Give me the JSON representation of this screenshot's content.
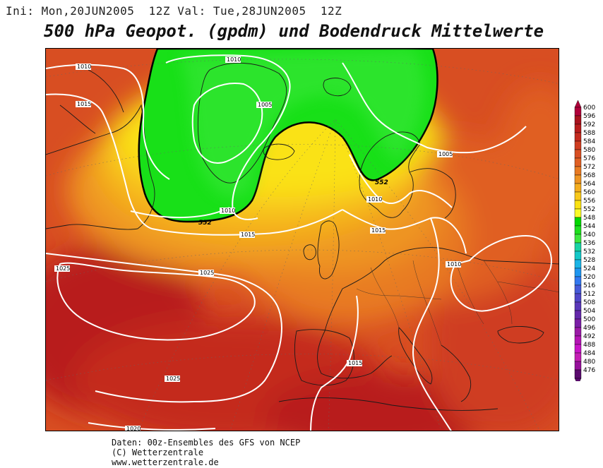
{
  "header": {
    "run_info": "Ini: Mon,20JUN2005  12Z Val: Tue,28JUN2005  12Z",
    "title": "500 hPa Geopot. (gpdm) und Bodendruck Mittelwerte"
  },
  "map": {
    "geopotential_contour_label": "552",
    "isobar_labels": [
      {
        "id": "isobar-1010-atlantic",
        "text": "1010"
      },
      {
        "id": "isobar-1010-greenland",
        "text": "1010"
      },
      {
        "id": "isobar-1005-greenland",
        "text": "1005"
      },
      {
        "id": "isobar-1015-westcoast",
        "text": "1015"
      },
      {
        "id": "isobar-1010-iceland",
        "text": "1010"
      },
      {
        "id": "isobar-1015-uk",
        "text": "1015"
      },
      {
        "id": "isobar-1005-scandinavia",
        "text": "1005"
      },
      {
        "id": "isobar-1010-baltic",
        "text": "1010"
      },
      {
        "id": "isobar-1015-baltic",
        "text": "1015"
      },
      {
        "id": "isobar-1025-west",
        "text": "1025"
      },
      {
        "id": "isobar-1025-center",
        "text": "1025"
      },
      {
        "id": "isobar-1010-balkans",
        "text": "1010"
      },
      {
        "id": "isobar-1015-iberia",
        "text": "1015"
      },
      {
        "id": "isobar-1025-south",
        "text": "1025"
      },
      {
        "id": "isobar-1020-bottom",
        "text": "1020"
      }
    ]
  },
  "colorbar": {
    "levels": [
      "600",
      "596",
      "592",
      "588",
      "584",
      "580",
      "576",
      "572",
      "568",
      "564",
      "560",
      "556",
      "552",
      "548",
      "544",
      "540",
      "536",
      "532",
      "528",
      "524",
      "520",
      "516",
      "512",
      "508",
      "504",
      "500",
      "496",
      "492",
      "488",
      "484",
      "480",
      "476"
    ],
    "colors": [
      "#b0003a",
      "#a8121e",
      "#b81c1c",
      "#c42a1e",
      "#cf3d20",
      "#d84e22",
      "#e05f23",
      "#e87a22",
      "#ee9422",
      "#f4ad1e",
      "#f8c81a",
      "#fae212",
      "#fafa28",
      "#00d800",
      "#1ee01e",
      "#3ee83e",
      "#19d3a4",
      "#14c8c8",
      "#1ab4e6",
      "#1e96f0",
      "#3278f0",
      "#465ad8",
      "#5046c8",
      "#5a37b9",
      "#6428aa",
      "#7a1ea6",
      "#9a1aa6",
      "#b414b4",
      "#c814c8",
      "#c41eb4",
      "#96109a",
      "#5a0a6e"
    ]
  },
  "footer": {
    "line1": "Daten: 00z-Ensembles des GFS von NCEP",
    "line2": "(C) Wetterzentrale",
    "line3": "www.wetterzentrale.de"
  }
}
